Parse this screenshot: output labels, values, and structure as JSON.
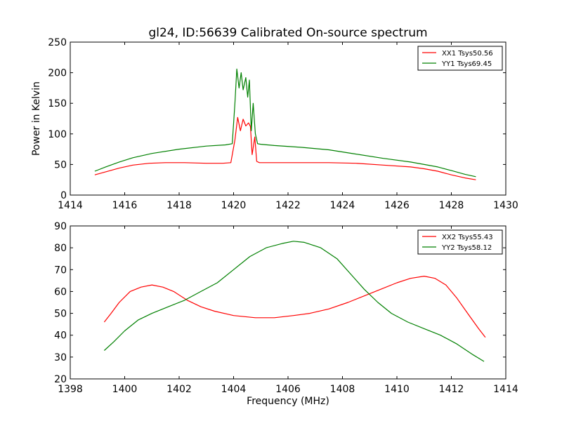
{
  "figure_title": "gl24, ID:56639 Calibrated On-source spectrum",
  "chart_data": [
    {
      "type": "line",
      "title": "gl24, ID:56639 Calibrated On-source spectrum",
      "xlabel": "",
      "ylabel": "Power in Kelvin",
      "xlim": [
        1414,
        1430
      ],
      "ylim": [
        0,
        250
      ],
      "xticks": [
        "1414",
        "1416",
        "1418",
        "1420",
        "1422",
        "1424",
        "1426",
        "1428",
        "1430"
      ],
      "yticks": [
        "0",
        "50",
        "100",
        "150",
        "200",
        "250"
      ],
      "legend_position": "top-right",
      "grid": false,
      "series": [
        {
          "name": "XX1 Tsys50.56",
          "color": "#ff0000",
          "x": [
            1414.9,
            1415.3,
            1415.8,
            1416.3,
            1416.9,
            1417.5,
            1418.2,
            1419.0,
            1419.6,
            1419.9,
            1420.05,
            1420.15,
            1420.25,
            1420.35,
            1420.45,
            1420.55,
            1420.62,
            1420.68,
            1420.78,
            1420.85,
            1420.95,
            1421.5,
            1422.5,
            1423.5,
            1424.5,
            1425.5,
            1426.5,
            1427.0,
            1427.5,
            1428.0,
            1428.5,
            1428.9
          ],
          "y": [
            33,
            38,
            44,
            49,
            52,
            53,
            53,
            52,
            52,
            53,
            90,
            127,
            105,
            124,
            113,
            118,
            112,
            66,
            95,
            55,
            53,
            53,
            53,
            53,
            52,
            49,
            46,
            43,
            39,
            33,
            28,
            25
          ]
        },
        {
          "name": "YY1 Tsys69.45",
          "color": "#008000",
          "x": [
            1414.9,
            1415.3,
            1415.8,
            1416.3,
            1417.0,
            1418.0,
            1419.0,
            1419.7,
            1419.95,
            1420.05,
            1420.12,
            1420.2,
            1420.28,
            1420.35,
            1420.45,
            1420.52,
            1420.58,
            1420.65,
            1420.72,
            1420.8,
            1420.88,
            1421.0,
            1421.5,
            1422.5,
            1423.5,
            1424.5,
            1425.5,
            1426.5,
            1427.5,
            1428.0,
            1428.5,
            1428.9
          ],
          "y": [
            39,
            46,
            54,
            61,
            68,
            75,
            80,
            82,
            84,
            150,
            206,
            175,
            200,
            172,
            192,
            160,
            188,
            105,
            150,
            100,
            84,
            83,
            81,
            78,
            74,
            67,
            60,
            54,
            46,
            40,
            34,
            30
          ]
        }
      ]
    },
    {
      "type": "line",
      "title": "",
      "xlabel": "Frequency (MHz)",
      "ylabel": "",
      "xlim": [
        1398,
        1414
      ],
      "ylim": [
        20,
        90
      ],
      "xticks": [
        "1398",
        "1400",
        "1402",
        "1404",
        "1406",
        "1408",
        "1410",
        "1412",
        "1414"
      ],
      "yticks": [
        "20",
        "30",
        "40",
        "50",
        "60",
        "70",
        "80",
        "90"
      ],
      "legend_position": "top-right",
      "grid": false,
      "series": [
        {
          "name": "XX2 Tsys55.43",
          "color": "#ff0000",
          "x": [
            1399.25,
            1399.5,
            1399.8,
            1400.2,
            1400.6,
            1401.0,
            1401.4,
            1401.8,
            1402.3,
            1402.8,
            1403.3,
            1404.0,
            1404.8,
            1405.5,
            1406.2,
            1406.8,
            1407.5,
            1408.2,
            1408.8,
            1409.4,
            1410.0,
            1410.5,
            1411.0,
            1411.4,
            1411.8,
            1412.2,
            1412.6,
            1413.0,
            1413.25
          ],
          "y": [
            46,
            50,
            55,
            60,
            62,
            63,
            62,
            60,
            56,
            53,
            51,
            49,
            48,
            48,
            49,
            50,
            52,
            55,
            58,
            61,
            64,
            66,
            67,
            66,
            63,
            57,
            50,
            43,
            39
          ]
        },
        {
          "name": "YY2 Tsys58.12",
          "color": "#008000",
          "x": [
            1399.25,
            1399.6,
            1400.0,
            1400.5,
            1401.0,
            1401.6,
            1402.2,
            1402.8,
            1403.4,
            1404.0,
            1404.6,
            1405.2,
            1405.8,
            1406.2,
            1406.6,
            1407.2,
            1407.8,
            1408.3,
            1408.8,
            1409.3,
            1409.8,
            1410.4,
            1411.0,
            1411.6,
            1412.2,
            1412.8,
            1413.2
          ],
          "y": [
            33,
            37,
            42,
            47,
            50,
            53,
            56,
            60,
            64,
            70,
            76,
            80,
            82,
            83,
            82.5,
            80,
            75,
            68,
            61,
            55,
            50,
            46,
            43,
            40,
            36,
            31,
            28
          ]
        }
      ]
    }
  ]
}
